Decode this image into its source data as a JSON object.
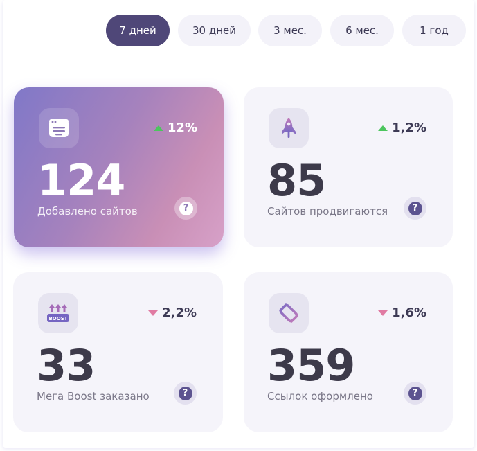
{
  "periods": {
    "items": [
      {
        "label": "7 дней",
        "active": true
      },
      {
        "label": "30 дней",
        "active": false
      },
      {
        "label": "3 мес.",
        "active": false
      },
      {
        "label": "6 мес.",
        "active": false
      },
      {
        "label": "1 год",
        "active": false
      }
    ]
  },
  "colors": {
    "accent": "#4f4778",
    "up": "#4cc55e",
    "down": "#e07aa2",
    "card_bg": "#f5f4fa"
  },
  "stats": [
    {
      "icon": "browser-window-icon",
      "value": "124",
      "label": "Добавлено сайтов",
      "delta": "12%",
      "trend": "up",
      "help": "?"
    },
    {
      "icon": "rocket-icon",
      "value": "85",
      "label": "Сайтов продвигаются",
      "delta": "1,2%",
      "trend": "up",
      "help": "?"
    },
    {
      "icon": "boost-icon",
      "icon_text": "BOOST",
      "value": "33",
      "label": "Мега Boost заказано",
      "delta": "2,2%",
      "trend": "down",
      "help": "?"
    },
    {
      "icon": "links-chain-icon",
      "value": "359",
      "label": "Ссылок оформлено",
      "delta": "1,6%",
      "trend": "down",
      "help": "?"
    }
  ]
}
